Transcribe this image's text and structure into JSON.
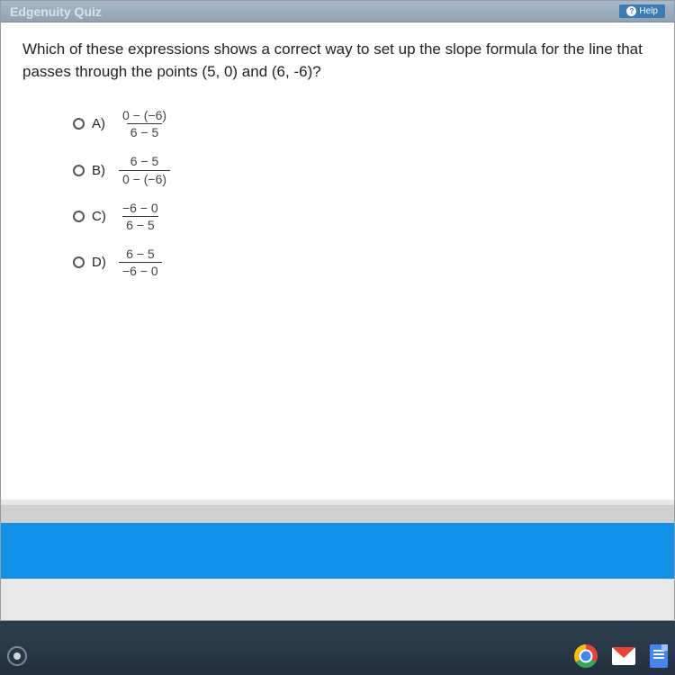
{
  "header": {
    "title": "Edgenuity Quiz",
    "help_label": "Help"
  },
  "question": {
    "text": "Which of these expressions shows a correct way to set up the slope formula for the line that passes through the points (5, 0) and (6, -6)?"
  },
  "choices": [
    {
      "label": "A)",
      "numerator": "0 − (−6)",
      "denominator": "6 − 5"
    },
    {
      "label": "B)",
      "numerator": "6 − 5",
      "denominator": "0 − (−6)"
    },
    {
      "label": "C)",
      "numerator": "−6 − 0",
      "denominator": "6 − 5"
    },
    {
      "label": "D)",
      "numerator": "6 − 5",
      "denominator": "−6 − 0"
    }
  ],
  "colors": {
    "accent_blue": "#1191e8",
    "header_grad_top": "#a8b8c8",
    "header_grad_bot": "#8fa3b3",
    "taskbar": "#2b3c4b"
  }
}
